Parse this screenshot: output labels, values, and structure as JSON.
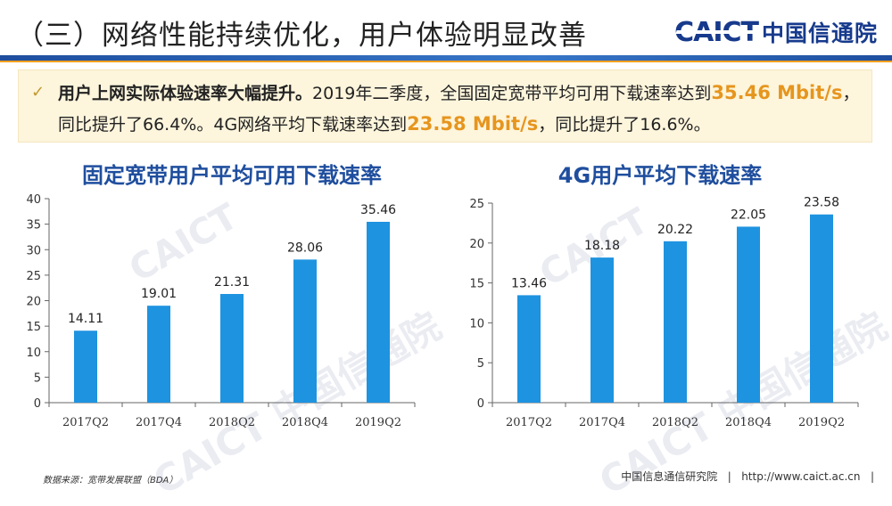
{
  "header": {
    "title": "（三）网络性能持续优化，用户体验明显改善",
    "logo_en": "CAICT",
    "logo_cn": "中国信通院"
  },
  "summary": {
    "bold_lead": "用户上网实际体验速率大幅提升。",
    "text_a": "2019年二季度，全国固定宽带平均可用下载速率达到",
    "highlight_a": "35.46 Mbit/s",
    "text_b": "，同比提升了66.4%。4G网络平均下载速率达到",
    "highlight_b": "23.58 Mbit/s",
    "text_c": "，同比提升了16.6%。"
  },
  "chart_data": [
    {
      "type": "bar",
      "title": "固定宽带用户平均可用下载速率",
      "categories": [
        "2017Q2",
        "2017Q4",
        "2018Q2",
        "2018Q4",
        "2019Q2"
      ],
      "values": [
        14.11,
        19.01,
        21.31,
        28.06,
        35.46
      ],
      "ylim": [
        0,
        40
      ],
      "yticks": [
        0,
        5,
        10,
        15,
        20,
        25,
        30,
        35,
        40
      ],
      "bar_color": "#1e93e0",
      "data_labels": true,
      "grid": false
    },
    {
      "type": "bar",
      "title": "4G用户平均下载速率",
      "categories": [
        "2017Q2",
        "2017Q4",
        "2018Q2",
        "2018Q4",
        "2019Q2"
      ],
      "values": [
        13.46,
        18.18,
        20.22,
        22.05,
        23.58
      ],
      "ylim": [
        0,
        25
      ],
      "yticks": [
        0,
        5,
        10,
        15,
        20,
        25
      ],
      "bar_color": "#1e93e0",
      "data_labels": true,
      "grid": false
    }
  ],
  "watermark": {
    "en": "CAICT",
    "cn": "中国信通院"
  },
  "footer": {
    "source": "数据来源：宽带发展联盟（BDA）",
    "org": "中国信息通信研究院",
    "url": "http://www.caict.ac.cn"
  },
  "colors": {
    "brand_blue": "#1f4e9e",
    "accent_orange": "#e6951e",
    "bar_blue": "#1e93e0",
    "summary_bg": "#fdf5dc"
  }
}
